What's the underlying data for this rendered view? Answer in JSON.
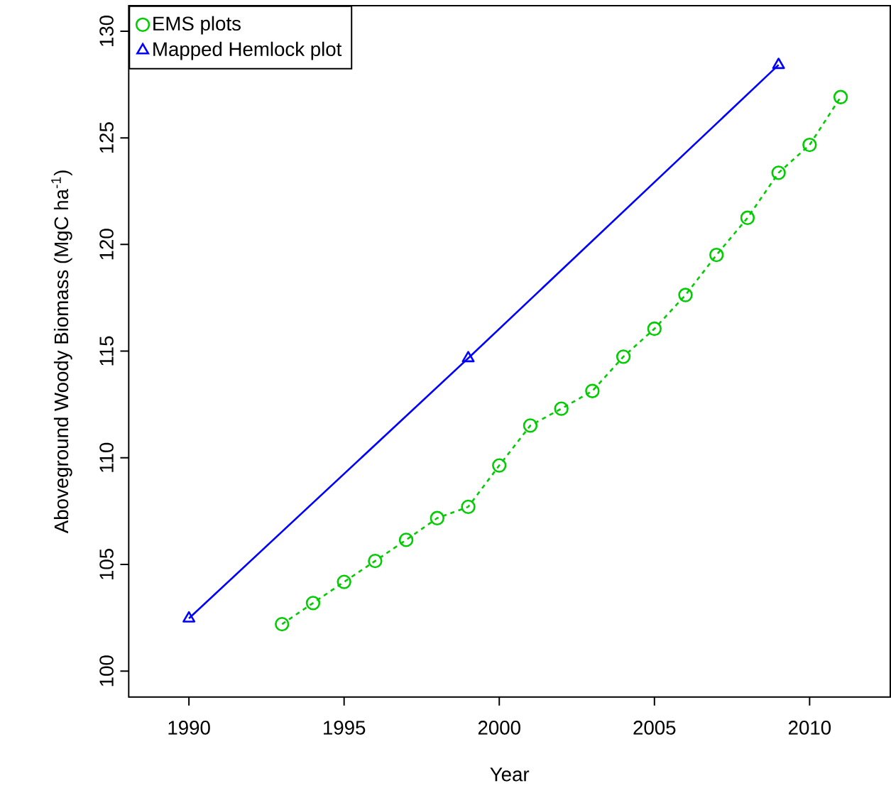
{
  "chart_data": {
    "type": "line",
    "xlabel": "Year",
    "ylabel": "Aboveground Woody Biomass (MgC ha$^{-1}$)",
    "xlim": [
      1988.06,
      2012.6
    ],
    "ylim": [
      98.78,
      131.2
    ],
    "xticks": [
      1990,
      1995,
      2000,
      2005,
      2010
    ],
    "yticks": [
      100,
      105,
      110,
      115,
      120,
      125,
      130
    ],
    "legend": "top left",
    "series": [
      {
        "name": "EMS plots",
        "color": "#00cc00",
        "marker": "circle",
        "line_style": "dashed",
        "x": [
          1993,
          1994,
          1995,
          1996,
          1997,
          1998,
          1999,
          2000,
          2001,
          2002,
          2003,
          2004,
          2005,
          2006,
          2007,
          2008,
          2009,
          2010,
          2011
        ],
        "values": [
          102.2,
          103.19,
          104.18,
          105.16,
          106.15,
          107.17,
          107.7,
          109.64,
          111.51,
          112.3,
          113.13,
          114.74,
          116.05,
          117.63,
          119.51,
          121.25,
          123.36,
          124.67,
          126.91
        ]
      },
      {
        "name": "Mapped Hemlock plot",
        "color": "#0000ff",
        "marker": "triangle",
        "line_style": "solid",
        "x": [
          1990,
          1999,
          2009
        ],
        "values": [
          102.47,
          114.67,
          128.42
        ]
      }
    ]
  }
}
